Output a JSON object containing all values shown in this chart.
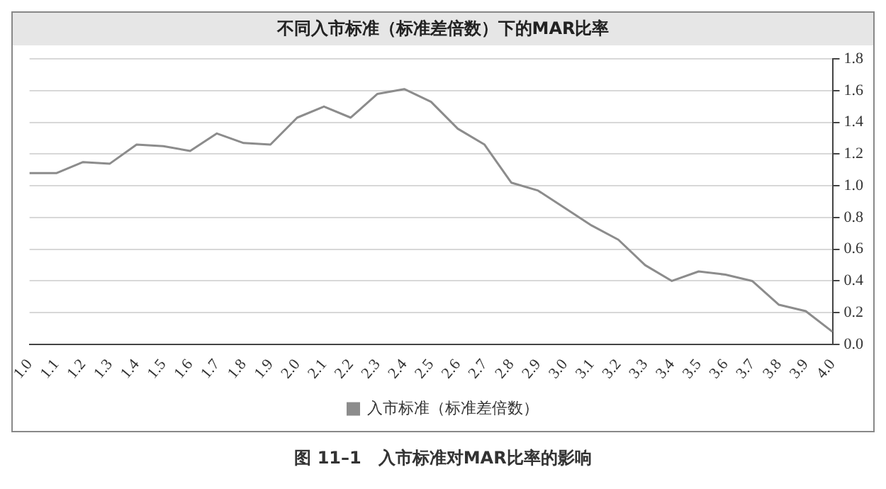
{
  "chart_data": {
    "type": "line",
    "title": "不同入市标准（标准差倍数）下的MAR比率",
    "categories": [
      "1.0",
      "1.1",
      "1.2",
      "1.3",
      "1.4",
      "1.5",
      "1.6",
      "1.7",
      "1.8",
      "1.9",
      "2.0",
      "2.1",
      "2.2",
      "2.3",
      "2.4",
      "2.5",
      "2.6",
      "2.7",
      "2.8",
      "2.9",
      "3.0",
      "3.1",
      "3.2",
      "3.3",
      "3.4",
      "3.5",
      "3.6",
      "3.7",
      "3.8",
      "3.9",
      "4.0"
    ],
    "series": [
      {
        "name": "入市标准（标准差倍数）",
        "color": "#8c8c8c",
        "values": [
          1.08,
          1.08,
          1.15,
          1.14,
          1.26,
          1.25,
          1.22,
          1.33,
          1.27,
          1.26,
          1.43,
          1.5,
          1.43,
          1.58,
          1.61,
          1.53,
          1.36,
          1.26,
          1.02,
          0.97,
          0.86,
          0.75,
          0.66,
          0.5,
          0.4,
          0.46,
          0.44,
          0.4,
          0.25,
          0.21,
          0.08
        ]
      }
    ],
    "ylim": [
      0,
      1.8
    ],
    "yticks": [
      {
        "value": 0,
        "label": "0.0"
      },
      0.2,
      0.4,
      0.6,
      0.8,
      {
        "value": 1,
        "label": "1.0"
      },
      1.2,
      1.4,
      1.6,
      1.8
    ],
    "grid": "y",
    "legend": "bottom",
    "marker": "none",
    "line_style": "solid",
    "annotations": [
      "图 11–1　入市标准对MAR比率的影响"
    ]
  }
}
